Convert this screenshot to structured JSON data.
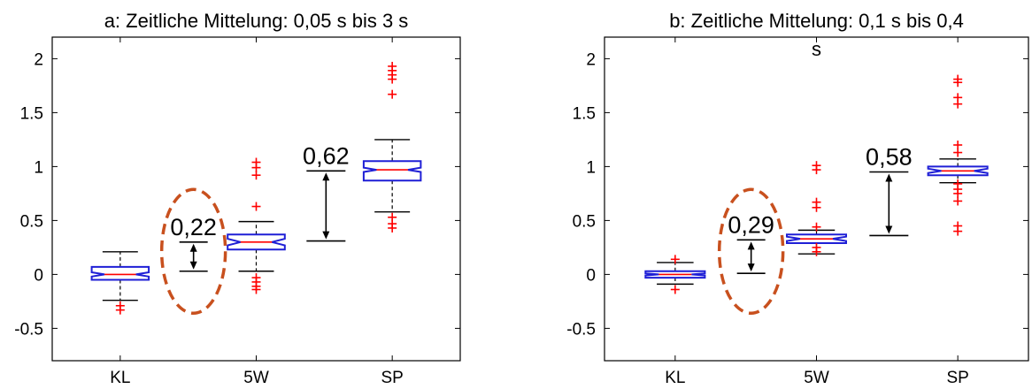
{
  "chart_data": [
    {
      "type": "box",
      "title": "a: Zeitliche Mittelung: 0,05 s bis 3 s",
      "categories": [
        "KL",
        "5W",
        "SP"
      ],
      "ylim": [
        -0.8,
        2.2
      ],
      "yticks": [
        2,
        1.5,
        1,
        0.5,
        0,
        -0.5
      ],
      "ytick_labels": [
        "2",
        "1.5",
        "1",
        "0.5",
        "0",
        "-0.5"
      ],
      "boxes": [
        {
          "category": "KL",
          "median": 0.0,
          "q1": -0.05,
          "q3": 0.07,
          "whisker_low": -0.24,
          "whisker_high": 0.21,
          "notch_low": -0.02,
          "notch_high": 0.02,
          "outliers": [
            -0.29,
            -0.33
          ]
        },
        {
          "category": "5W",
          "median": 0.3,
          "q1": 0.23,
          "q3": 0.37,
          "whisker_low": 0.03,
          "whisker_high": 0.49,
          "notch_low": 0.27,
          "notch_high": 0.33,
          "outliers": [
            1.04,
            0.99,
            0.92,
            0.63,
            -0.03,
            -0.07,
            -0.11,
            -0.14
          ]
        },
        {
          "category": "SP",
          "median": 0.97,
          "q1": 0.87,
          "q3": 1.05,
          "whisker_low": 0.58,
          "whisker_high": 1.25,
          "notch_low": 0.95,
          "notch_high": 0.99,
          "outliers": [
            1.93,
            1.89,
            1.85,
            1.81,
            1.67,
            0.53,
            0.47,
            0.43
          ]
        }
      ],
      "differences": [
        {
          "label": "0,22",
          "from": 0.03,
          "to": 0.3,
          "highlighted": true
        },
        {
          "label": "0,62",
          "from": 0.31,
          "to": 0.96,
          "highlighted": false
        }
      ]
    },
    {
      "type": "box",
      "title": "b: Zeitliche Mittelung: 0,1 s bis 0,4",
      "title_line2": "s",
      "categories": [
        "KL",
        "5W",
        "SP"
      ],
      "ylim": [
        -0.8,
        2.2
      ],
      "yticks": [
        2,
        1.5,
        1,
        0.5,
        0,
        -0.5
      ],
      "ytick_labels": [
        "2",
        "1.5",
        "1",
        "0.5",
        "0",
        "-0.5"
      ],
      "boxes": [
        {
          "category": "KL",
          "median": 0.0,
          "q1": -0.03,
          "q3": 0.03,
          "whisker_low": -0.09,
          "whisker_high": 0.11,
          "notch_low": -0.01,
          "notch_high": 0.01,
          "outliers": [
            0.14,
            -0.14
          ]
        },
        {
          "category": "5W",
          "median": 0.33,
          "q1": 0.29,
          "q3": 0.37,
          "whisker_low": 0.19,
          "whisker_high": 0.41,
          "notch_low": 0.31,
          "notch_high": 0.35,
          "outliers": [
            1.01,
            0.97,
            0.67,
            0.62,
            0.44,
            0.25,
            0.21
          ]
        },
        {
          "category": "SP",
          "median": 0.96,
          "q1": 0.92,
          "q3": 1.0,
          "whisker_low": 0.85,
          "whisker_high": 1.07,
          "notch_low": 0.94,
          "notch_high": 0.98,
          "outliers": [
            1.81,
            1.78,
            1.64,
            1.58,
            1.2,
            1.13,
            0.84,
            0.79,
            0.75,
            0.68,
            0.45,
            0.4
          ]
        }
      ],
      "differences": [
        {
          "label": "0,29",
          "from": 0.01,
          "to": 0.32,
          "highlighted": true
        },
        {
          "label": "0,58",
          "from": 0.36,
          "to": 0.95,
          "highlighted": false
        }
      ]
    }
  ],
  "colors": {
    "box": "#1f1fd6",
    "median": "#ff0000",
    "outlier": "#ff0000",
    "whisker": "#000000",
    "axis": "#000000",
    "highlight_ellipse": "#c8501e"
  }
}
